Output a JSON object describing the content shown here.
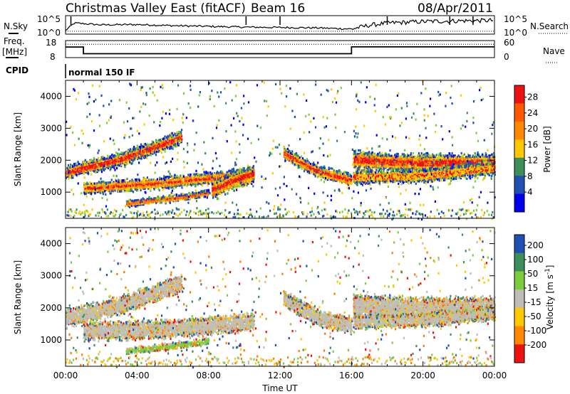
{
  "header": {
    "title": "Christmas Valley East (fitACF)",
    "beam": "Beam 16",
    "date": "08/Apr/2011"
  },
  "left_labels": {
    "nsky": "N.Sky",
    "freq": "Freq.",
    "freq_unit": "[MHz]",
    "cpid": "CPID"
  },
  "right_labels": {
    "nsearch": "N.Search",
    "nave": "Nave"
  },
  "cpid_text": "normal 150 IF",
  "colors": {
    "r": "#ee1111",
    "o": "#ff7a00",
    "y": "#ffc800",
    "g": "#7ccd3c",
    "t": "#3c8f5a",
    "b": "#1f50b4",
    "d": "#0000ee",
    "s": "#bebeb6"
  },
  "chart_data": [
    {
      "type": "line",
      "name": "noise",
      "series": [
        {
          "name": "N.Sky",
          "x_hours": [
            0,
            0.5,
            2,
            4,
            6,
            8,
            10,
            12,
            14,
            16,
            17,
            18,
            20,
            22,
            24
          ],
          "values": [
            1,
            3,
            2.5,
            2.6,
            2.3,
            2.1,
            1.9,
            1.8,
            1.7,
            1.4,
            2.4,
            3.0,
            3.4,
            3.6,
            3.7
          ]
        },
        {
          "name": "N.Search",
          "x_hours": [
            0,
            24
          ],
          "values": [
            0.8,
            0.8
          ]
        }
      ],
      "y_ticks": [
        "10^5",
        "10^0"
      ],
      "ylabel": "N.Sky"
    },
    {
      "type": "line",
      "name": "frequency",
      "series": [
        {
          "name": "Freq.",
          "x_hours": [
            0,
            0.2,
            1.0,
            16.0,
            24
          ],
          "values": [
            14.2,
            14.2,
            10.3,
            14.3,
            14.3
          ]
        },
        {
          "name": "Nave",
          "x_hours": [
            0,
            24
          ],
          "values": [
            47,
            47
          ]
        }
      ],
      "y_ticks": [
        "18",
        "8"
      ],
      "y2_ticks": [
        "60",
        "0"
      ],
      "ylabel": "Freq. [MHz]"
    },
    {
      "type": "heatmap",
      "name": "power",
      "xlabel": "",
      "ylabel": "Slant Range [km]",
      "xlim_hours": [
        0,
        24
      ],
      "ylim": [
        180,
        4500
      ],
      "y_ticks": [
        "1000",
        "2000",
        "3000",
        "4000"
      ],
      "colorbar_label": "Power [dB]",
      "colorbar_ticks": [
        "28",
        "24",
        "20",
        "16",
        "12",
        "8",
        "4"
      ],
      "colorbar_colors": [
        "#ee1111",
        "#ff5a00",
        "#ff8a00",
        "#ffc800",
        "#3c8f5a",
        "#1f50b4",
        "#0000ee"
      ],
      "bands": [
        {
          "t": [
            0,
            3,
            6.5
          ],
          "r": [
            1650,
            2050,
            2750
          ],
          "w": 260,
          "lead": "r"
        },
        {
          "t": [
            1,
            5,
            8.5,
            10.5
          ],
          "r": [
            1150,
            1300,
            1500,
            1600
          ],
          "w": 220,
          "lead": "r"
        },
        {
          "t": [
            3.4,
            6.5,
            8
          ],
          "r": [
            680,
            870,
            1000
          ],
          "w": 130,
          "lead": "o"
        },
        {
          "t": [
            8.2,
            9.4,
            10.5
          ],
          "r": [
            1100,
            1400,
            1600
          ],
          "w": 330,
          "lead": "r"
        },
        {
          "t": [
            12.2,
            14,
            16
          ],
          "r": [
            2250,
            1700,
            1400
          ],
          "w": 230,
          "lead": "r"
        },
        {
          "t": [
            16.1,
            19,
            24
          ],
          "r": [
            2050,
            1950,
            1950
          ],
          "w": 320,
          "lead": "r"
        },
        {
          "t": [
            16.1,
            20,
            24
          ],
          "r": [
            1500,
            1550,
            1800
          ],
          "w": 260,
          "lead": "y"
        }
      ]
    },
    {
      "type": "heatmap",
      "name": "velocity",
      "xlabel": "Time UT",
      "ylabel": "Slant Range [km]",
      "xlim_hours": [
        0,
        24
      ],
      "ylim": [
        180,
        4500
      ],
      "x_ticks": [
        "00:00",
        "04:00",
        "08:00",
        "12:00",
        "16:00",
        "20:00",
        "00:00"
      ],
      "y_ticks": [
        "1000",
        "2000",
        "3000",
        "4000"
      ],
      "colorbar_label": "Velocity [m s^-1]",
      "colorbar_ticks": [
        "200",
        "100",
        "50",
        "15",
        "-15",
        "-50",
        "-100",
        "-200"
      ],
      "colorbar_colors": [
        "#1f50b4",
        "#3c8f5a",
        "#7ccd3c",
        "#bebeb6",
        "#ffc800",
        "#ff8a00",
        "#ee1111"
      ],
      "bands": [
        {
          "t": [
            0,
            3,
            6.5
          ],
          "r": [
            1700,
            2100,
            2800
          ],
          "w": 320,
          "lead": "s"
        },
        {
          "t": [
            1,
            5,
            8.5,
            10.5
          ],
          "r": [
            1300,
            1350,
            1500,
            1600
          ],
          "w": 330,
          "lead": "s"
        },
        {
          "t": [
            3.4,
            6.5,
            8
          ],
          "r": [
            680,
            870,
            1000
          ],
          "w": 120,
          "lead": "g"
        },
        {
          "t": [
            12.2,
            14,
            16
          ],
          "r": [
            2300,
            1750,
            1450
          ],
          "w": 300,
          "lead": "s"
        },
        {
          "t": [
            16.1,
            19,
            24
          ],
          "r": [
            2100,
            2000,
            2000
          ],
          "w": 420,
          "lead": "s"
        },
        {
          "t": [
            16.1,
            20,
            24
          ],
          "r": [
            1600,
            1650,
            1900
          ],
          "w": 260,
          "lead": "s"
        }
      ]
    }
  ]
}
